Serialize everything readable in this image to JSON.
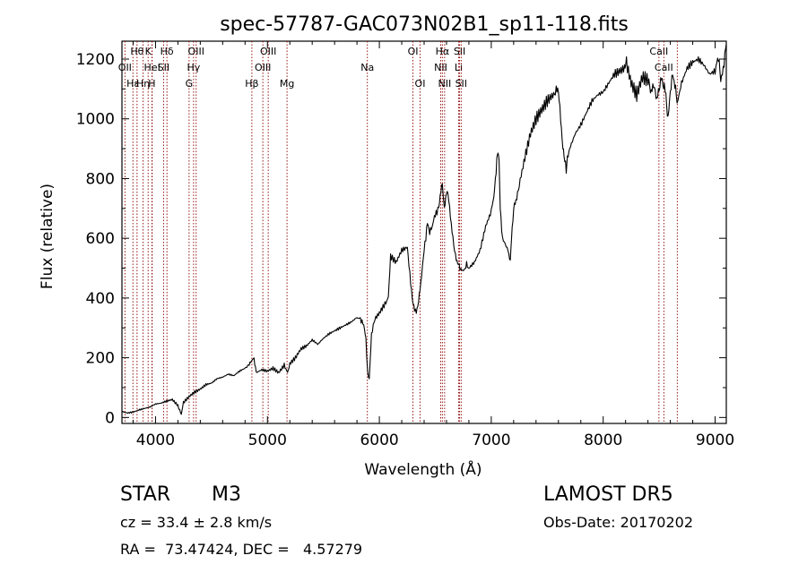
{
  "chart_data": {
    "type": "line",
    "title": "spec-57787-GAC073N02B1_sp11-118.fits",
    "xlabel": "Wavelength (Å)",
    "ylabel": "Flux (relative)",
    "xlim": [
      3700,
      9100
    ],
    "ylim": [
      -20,
      1260
    ],
    "xticks": [
      4000,
      5000,
      6000,
      7000,
      8000,
      9000
    ],
    "yticks": [
      0,
      200,
      400,
      600,
      800,
      1000,
      1200
    ],
    "grid": false,
    "line_color": "#000000",
    "marker_color": "#8b0000",
    "series": [
      {
        "x": [
          3700,
          3750,
          3800,
          3850,
          3900,
          3950,
          4000,
          4050,
          4100,
          4150,
          4200,
          4230,
          4250,
          4300,
          4350,
          4400,
          4450,
          4500,
          4550,
          4600,
          4650,
          4700,
          4750,
          4800,
          4830,
          4850,
          4880,
          4900,
          4950,
          5000,
          5050,
          5100,
          5150,
          5180,
          5200,
          5250,
          5300,
          5350,
          5400,
          5450,
          5500,
          5550,
          5600,
          5650,
          5700,
          5750,
          5800,
          5830,
          5860,
          5880,
          5895,
          5910,
          5930,
          5960,
          6000,
          6050,
          6080,
          6100,
          6150,
          6200,
          6250,
          6280,
          6300,
          6330,
          6350,
          6370,
          6400,
          6430,
          6450,
          6470,
          6500,
          6530,
          6550,
          6563,
          6580,
          6600,
          6620,
          6650,
          6680,
          6700,
          6720,
          6750,
          6780,
          6800,
          6850,
          6900,
          6950,
          7000,
          7030,
          7050,
          7060,
          7070,
          7080,
          7100,
          7150,
          7170,
          7180,
          7200,
          7220,
          7250,
          7300,
          7350,
          7400,
          7450,
          7500,
          7550,
          7580,
          7600,
          7620,
          7640,
          7650,
          7670,
          7680,
          7700,
          7750,
          7800,
          7850,
          7900,
          7950,
          8000,
          8050,
          8100,
          8150,
          8190,
          8200,
          8250,
          8300,
          8350,
          8400,
          8430,
          8450,
          8480,
          8500,
          8520,
          8540,
          8560,
          8580,
          8600,
          8620,
          8640,
          8660,
          8700,
          8750,
          8800,
          8850,
          8900,
          8950,
          9000,
          9030,
          9050,
          9080,
          9100
        ],
        "y": [
          20,
          15,
          18,
          25,
          30,
          35,
          45,
          48,
          55,
          60,
          40,
          10,
          50,
          70,
          85,
          95,
          110,
          115,
          130,
          135,
          145,
          140,
          155,
          165,
          175,
          185,
          200,
          150,
          160,
          155,
          165,
          150,
          175,
          150,
          180,
          200,
          230,
          240,
          260,
          245,
          265,
          280,
          290,
          300,
          310,
          320,
          335,
          330,
          310,
          260,
          150,
          130,
          280,
          330,
          350,
          380,
          400,
          540,
          520,
          560,
          570,
          450,
          380,
          350,
          390,
          450,
          560,
          650,
          620,
          640,
          680,
          700,
          760,
          780,
          700,
          760,
          730,
          620,
          540,
          520,
          500,
          490,
          510,
          500,
          520,
          560,
          640,
          690,
          760,
          870,
          900,
          850,
          700,
          600,
          560,
          520,
          600,
          700,
          720,
          780,
          870,
          950,
          1000,
          1030,
          1060,
          1080,
          1090,
          1100,
          1000,
          900,
          880,
          820,
          860,
          900,
          950,
          980,
          1020,
          1060,
          1080,
          1090,
          1120,
          1150,
          1160,
          1170,
          1200,
          1120,
          1080,
          1140,
          1130,
          1090,
          1120,
          1060,
          1100,
          1140,
          1110,
          1080,
          1000,
          1090,
          1150,
          1120,
          1050,
          1120,
          1170,
          1190,
          1200,
          1180,
          1150,
          1160,
          1210,
          1130,
          1180,
          1250
        ]
      }
    ],
    "line_markers": [
      {
        "wavelength": 3727,
        "row": 1,
        "label": "OII"
      },
      {
        "wavelength": 3798,
        "row": 2,
        "label": "Hε"
      },
      {
        "wavelength": 3835,
        "row": 0,
        "label": "Hθ"
      },
      {
        "wavelength": 3889,
        "row": 2,
        "label": "Hη"
      },
      {
        "wavelength": 3934,
        "row": 0,
        "label": "K"
      },
      {
        "wavelength": 3968,
        "row": 2,
        "label": "H"
      },
      {
        "wavelength": 3970,
        "row": 1,
        "label": "HeI"
      },
      {
        "wavelength": 4072,
        "row": 1,
        "label": "SII"
      },
      {
        "wavelength": 4102,
        "row": 0,
        "label": "Hδ"
      },
      {
        "wavelength": 4300,
        "row": 2,
        "label": "G"
      },
      {
        "wavelength": 4340,
        "row": 1,
        "label": "Hγ"
      },
      {
        "wavelength": 4363,
        "row": 0,
        "label": "OIII"
      },
      {
        "wavelength": 4861,
        "row": 2,
        "label": "Hβ"
      },
      {
        "wavelength": 4959,
        "row": 1,
        "label": "OIII"
      },
      {
        "wavelength": 5007,
        "row": 0,
        "label": "OIII"
      },
      {
        "wavelength": 5175,
        "row": 2,
        "label": "Mg"
      },
      {
        "wavelength": 5893,
        "row": 1,
        "label": "Na"
      },
      {
        "wavelength": 6300,
        "row": 0,
        "label": "OI"
      },
      {
        "wavelength": 6364,
        "row": 2,
        "label": "OI"
      },
      {
        "wavelength": 6548,
        "row": 1,
        "label": "NII"
      },
      {
        "wavelength": 6563,
        "row": 0,
        "label": "Hα"
      },
      {
        "wavelength": 6583,
        "row": 2,
        "label": "NII"
      },
      {
        "wavelength": 6708,
        "row": 1,
        "label": "Li"
      },
      {
        "wavelength": 6717,
        "row": 0,
        "label": "SII"
      },
      {
        "wavelength": 6731,
        "row": 2,
        "label": "SII"
      },
      {
        "wavelength": 8498,
        "row": 0,
        "label": "CaII"
      },
      {
        "wavelength": 8542,
        "row": 1,
        "label": "CaII"
      },
      {
        "wavelength": 8662,
        "row": 0,
        "label": ""
      }
    ]
  },
  "info": {
    "object_type": "STAR",
    "subclass": "M3",
    "survey": "LAMOST DR5",
    "cz": "cz = 33.4 ± 2.8 km/s",
    "obs_date": "Obs-Date: 20170202",
    "coords": "RA =  73.47424, DEC =   4.57279"
  }
}
